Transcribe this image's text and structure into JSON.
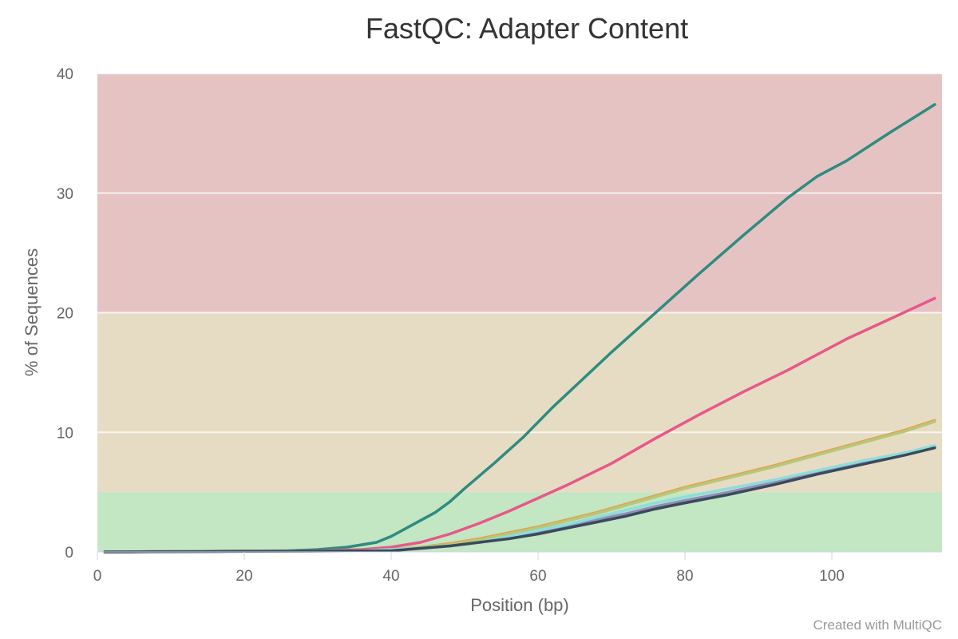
{
  "chart_data": {
    "type": "line",
    "title": "FastQC: Adapter Content",
    "xlabel": "Position (bp)",
    "ylabel": "% of Sequences",
    "xlim": [
      0,
      115
    ],
    "ylim": [
      0,
      40
    ],
    "xticks": [
      0,
      20,
      40,
      60,
      80,
      100
    ],
    "yticks": [
      0,
      10,
      20,
      30,
      40
    ],
    "grid": true,
    "bands": [
      {
        "from": 0,
        "to": 5,
        "color": "#c3e6c3"
      },
      {
        "from": 5,
        "to": 20,
        "color": "#e6dcc3"
      },
      {
        "from": 20,
        "to": 40,
        "color": "#e6c3c3"
      }
    ],
    "series": [
      {
        "color": "#2e8b80",
        "x": [
          1,
          26,
          30,
          34,
          36,
          38,
          40,
          43,
          46,
          48,
          50,
          54,
          58,
          62,
          66,
          70,
          76,
          82,
          88,
          94,
          98,
          102,
          108,
          114
        ],
        "values": [
          0.0,
          0.1,
          0.2,
          0.4,
          0.6,
          0.8,
          1.3,
          2.3,
          3.3,
          4.2,
          5.3,
          7.4,
          9.6,
          12.1,
          14.4,
          16.7,
          20.0,
          23.3,
          26.5,
          29.6,
          31.4,
          32.7,
          35.1,
          37.4
        ]
      },
      {
        "color": "#e8578a",
        "x": [
          1,
          30,
          36,
          40,
          44,
          48,
          52,
          56,
          60,
          64,
          70,
          76,
          82,
          88,
          94,
          102,
          108,
          114
        ],
        "values": [
          0.0,
          0.1,
          0.2,
          0.4,
          0.8,
          1.5,
          2.4,
          3.4,
          4.5,
          5.6,
          7.4,
          9.5,
          11.5,
          13.4,
          15.2,
          17.8,
          19.5,
          21.2
        ]
      },
      {
        "color": "#e8a04e",
        "x": [
          1,
          36,
          40,
          44,
          48,
          52,
          56,
          60,
          64,
          68,
          72,
          76,
          80,
          86,
          92,
          98,
          104,
          110,
          114
        ],
        "values": [
          0.0,
          0.1,
          0.2,
          0.4,
          0.7,
          1.1,
          1.6,
          2.1,
          2.7,
          3.3,
          4.0,
          4.7,
          5.4,
          6.3,
          7.2,
          8.2,
          9.2,
          10.2,
          11.0
        ]
      },
      {
        "color": "#b5c97a",
        "x": [
          1,
          36,
          40,
          44,
          48,
          52,
          56,
          60,
          64,
          68,
          72,
          76,
          80,
          86,
          92,
          98,
          104,
          110,
          114
        ],
        "values": [
          0.0,
          0.1,
          0.2,
          0.4,
          0.6,
          1.0,
          1.5,
          2.0,
          2.6,
          3.2,
          3.9,
          4.6,
          5.3,
          6.2,
          7.1,
          8.1,
          9.1,
          10.1,
          10.9
        ]
      },
      {
        "color": "#8f8fb8",
        "x": [
          1,
          40,
          44,
          48,
          52,
          56,
          60,
          64,
          68,
          72,
          76,
          80,
          86,
          92,
          98,
          104,
          110,
          114
        ],
        "values": [
          0.0,
          0.1,
          0.3,
          0.5,
          0.8,
          1.2,
          1.7,
          2.2,
          2.7,
          3.2,
          3.8,
          4.3,
          5.0,
          5.8,
          6.7,
          7.5,
          8.3,
          8.8
        ]
      },
      {
        "color": "#8fdcdc",
        "x": [
          1,
          36,
          40,
          44,
          48,
          52,
          56,
          60,
          64,
          68,
          72,
          76,
          80,
          86,
          92,
          98,
          104,
          110,
          114
        ],
        "values": [
          0.0,
          0.1,
          0.2,
          0.3,
          0.5,
          0.8,
          1.3,
          1.8,
          2.3,
          2.9,
          3.5,
          4.1,
          4.6,
          5.3,
          6.0,
          6.8,
          7.6,
          8.3,
          8.9
        ]
      },
      {
        "color": "#3a4a5a",
        "x": [
          1,
          40,
          44,
          48,
          52,
          56,
          60,
          64,
          68,
          72,
          76,
          80,
          86,
          92,
          98,
          104,
          110,
          114
        ],
        "values": [
          0.0,
          0.1,
          0.3,
          0.5,
          0.8,
          1.1,
          1.5,
          2.0,
          2.5,
          3.0,
          3.6,
          4.1,
          4.8,
          5.6,
          6.5,
          7.3,
          8.1,
          8.7
        ]
      }
    ]
  },
  "credit": "Created with MultiQC"
}
